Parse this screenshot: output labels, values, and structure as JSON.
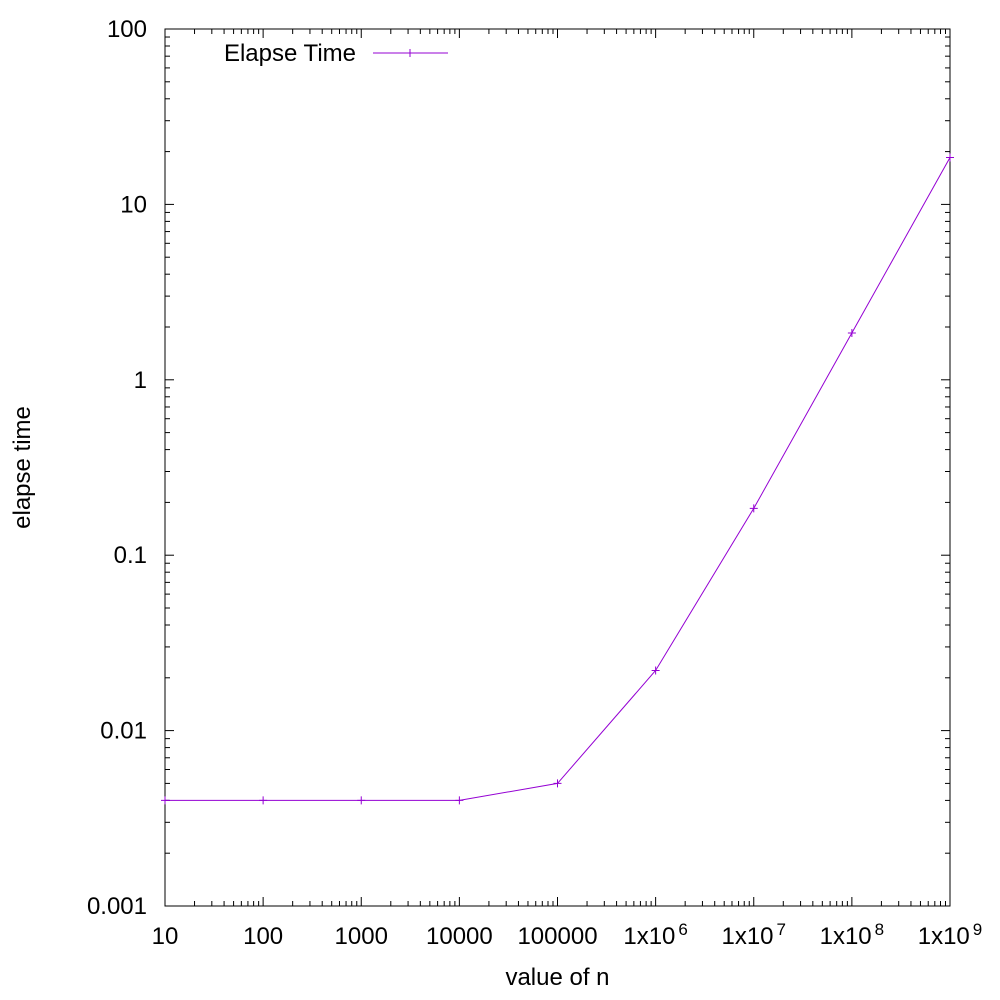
{
  "chart_data": {
    "type": "line",
    "title": "",
    "xlabel": "value of n",
    "ylabel": "elapse time",
    "x_scale": "log",
    "y_scale": "log",
    "xlim": [
      10,
      1000000000
    ],
    "ylim": [
      0.001,
      100
    ],
    "grid": false,
    "legend_position": "top-left",
    "x_ticks": [
      {
        "value": 10,
        "label": "10"
      },
      {
        "value": 100,
        "label": "100"
      },
      {
        "value": 1000,
        "label": "1000"
      },
      {
        "value": 10000,
        "label": "10000"
      },
      {
        "value": 100000,
        "label": "100000"
      },
      {
        "value": 1000000,
        "label": "1x10",
        "sup": "6"
      },
      {
        "value": 10000000,
        "label": "1x10",
        "sup": "7"
      },
      {
        "value": 100000000,
        "label": "1x10",
        "sup": "8"
      },
      {
        "value": 1000000000,
        "label": "1x10",
        "sup": "9"
      }
    ],
    "y_ticks": [
      {
        "value": 0.001,
        "label": "0.001"
      },
      {
        "value": 0.01,
        "label": "0.01"
      },
      {
        "value": 0.1,
        "label": "0.1"
      },
      {
        "value": 1,
        "label": "1"
      },
      {
        "value": 10,
        "label": "10"
      },
      {
        "value": 100,
        "label": "100"
      }
    ],
    "series": [
      {
        "name": "Elapse Time",
        "color": "#9400d3",
        "marker": "plus",
        "x": [
          10,
          100,
          1000,
          10000,
          100000,
          1000000,
          10000000,
          100000000,
          1000000000
        ],
        "y": [
          0.004,
          0.004,
          0.004,
          0.004,
          0.005,
          0.022,
          0.185,
          1.85,
          18.5
        ]
      }
    ]
  }
}
